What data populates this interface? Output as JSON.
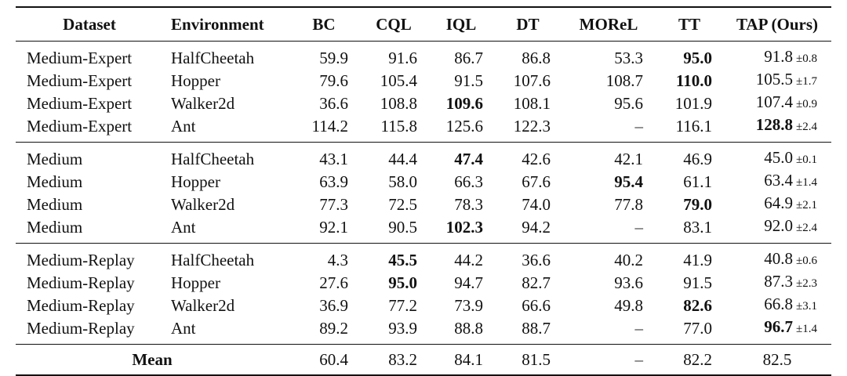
{
  "table": {
    "headers": [
      "Dataset",
      "Environment",
      "BC",
      "CQL",
      "IQL",
      "DT",
      "MOReL",
      "TT",
      "TAP (Ours)"
    ],
    "groups": [
      {
        "rows": [
          {
            "dataset": "Medium-Expert",
            "env": "HalfCheetah",
            "bc": "59.9",
            "cql": "91.6",
            "iql": "86.7",
            "dt": "86.8",
            "morel": "53.3",
            "tt": "95.0",
            "tap": "91.8",
            "tap_std": "±0.8",
            "bold": "tt"
          },
          {
            "dataset": "Medium-Expert",
            "env": "Hopper",
            "bc": "79.6",
            "cql": "105.4",
            "iql": "91.5",
            "dt": "107.6",
            "morel": "108.7",
            "tt": "110.0",
            "tap": "105.5",
            "tap_std": "±1.7",
            "bold": "tt"
          },
          {
            "dataset": "Medium-Expert",
            "env": "Walker2d",
            "bc": "36.6",
            "cql": "108.8",
            "iql": "109.6",
            "dt": "108.1",
            "morel": "95.6",
            "tt": "101.9",
            "tap": "107.4",
            "tap_std": "±0.9",
            "bold": "iql"
          },
          {
            "dataset": "Medium-Expert",
            "env": "Ant",
            "bc": "114.2",
            "cql": "115.8",
            "iql": "125.6",
            "dt": "122.3",
            "morel": "–",
            "tt": "116.1",
            "tap": "128.8",
            "tap_std": "±2.4",
            "bold": "tap"
          }
        ]
      },
      {
        "rows": [
          {
            "dataset": "Medium",
            "env": "HalfCheetah",
            "bc": "43.1",
            "cql": "44.4",
            "iql": "47.4",
            "dt": "42.6",
            "morel": "42.1",
            "tt": "46.9",
            "tap": "45.0",
            "tap_std": "±0.1",
            "bold": "iql"
          },
          {
            "dataset": "Medium",
            "env": "Hopper",
            "bc": "63.9",
            "cql": "58.0",
            "iql": "66.3",
            "dt": "67.6",
            "morel": "95.4",
            "tt": "61.1",
            "tap": "63.4",
            "tap_std": "±1.4",
            "bold": "morel"
          },
          {
            "dataset": "Medium",
            "env": "Walker2d",
            "bc": "77.3",
            "cql": "72.5",
            "iql": "78.3",
            "dt": "74.0",
            "morel": "77.8",
            "tt": "79.0",
            "tap": "64.9",
            "tap_std": "±2.1",
            "bold": "tt"
          },
          {
            "dataset": "Medium",
            "env": "Ant",
            "bc": "92.1",
            "cql": "90.5",
            "iql": "102.3",
            "dt": "94.2",
            "morel": "–",
            "tt": "83.1",
            "tap": "92.0",
            "tap_std": "±2.4",
            "bold": "iql"
          }
        ]
      },
      {
        "rows": [
          {
            "dataset": "Medium-Replay",
            "env": "HalfCheetah",
            "bc": "4.3",
            "cql": "45.5",
            "iql": "44.2",
            "dt": "36.6",
            "morel": "40.2",
            "tt": "41.9",
            "tap": "40.8",
            "tap_std": "±0.6",
            "bold": "cql"
          },
          {
            "dataset": "Medium-Replay",
            "env": "Hopper",
            "bc": "27.6",
            "cql": "95.0",
            "iql": "94.7",
            "dt": "82.7",
            "morel": "93.6",
            "tt": "91.5",
            "tap": "87.3",
            "tap_std": "±2.3",
            "bold": "cql"
          },
          {
            "dataset": "Medium-Replay",
            "env": "Walker2d",
            "bc": "36.9",
            "cql": "77.2",
            "iql": "73.9",
            "dt": "66.6",
            "morel": "49.8",
            "tt": "82.6",
            "tap": "66.8",
            "tap_std": "±3.1",
            "bold": "tt"
          },
          {
            "dataset": "Medium-Replay",
            "env": "Ant",
            "bc": "89.2",
            "cql": "93.9",
            "iql": "88.8",
            "dt": "88.7",
            "morel": "–",
            "tt": "77.0",
            "tap": "96.7",
            "tap_std": "±1.4",
            "bold": "tap"
          }
        ]
      }
    ],
    "mean": {
      "label": "Mean",
      "bc": "60.4",
      "cql": "83.2",
      "iql": "84.1",
      "dt": "81.5",
      "morel": "–",
      "tt": "82.2",
      "tap": "82.5"
    }
  }
}
